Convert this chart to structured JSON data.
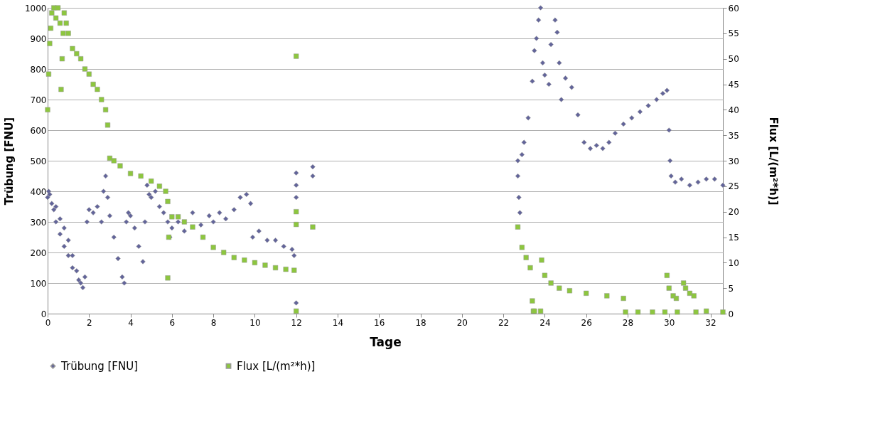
{
  "chart_data": {
    "type": "scatter",
    "xlabel": "Tage",
    "ylabel": "Trübung [FNU]",
    "y2label": "Flux [L/(m²*h)]",
    "xlim": [
      0,
      32.6
    ],
    "xticks": [
      0,
      2,
      4,
      6,
      8,
      10,
      12,
      14,
      16,
      18,
      20,
      22,
      24,
      26,
      28,
      30,
      32
    ],
    "ylim": [
      0,
      1000
    ],
    "yticks": [
      0,
      100,
      200,
      300,
      400,
      500,
      600,
      700,
      800,
      900,
      1000
    ],
    "y2lim": [
      0,
      60
    ],
    "y2ticks": [
      0,
      5,
      10,
      15,
      20,
      25,
      30,
      35,
      40,
      45,
      50,
      55,
      60
    ],
    "grid": "y",
    "legend": "bottom",
    "series": [
      {
        "name": "Trübung [FNU]",
        "color": "#62649a",
        "marker": "diamond",
        "x": [
          0,
          0.05,
          0.1,
          0.2,
          0.3,
          0.4,
          0.4,
          0.6,
          0.6,
          0.8,
          0.8,
          1.0,
          1.0,
          1.2,
          1.2,
          1.4,
          1.5,
          1.6,
          1.7,
          1.8,
          1.9,
          2.0,
          2.2,
          2.4,
          2.6,
          2.7,
          2.8,
          2.9,
          3.0,
          3.2,
          3.4,
          3.6,
          3.7,
          3.8,
          3.9,
          4.0,
          4.2,
          4.4,
          4.6,
          4.7,
          4.8,
          4.9,
          5.0,
          5.2,
          5.4,
          5.6,
          5.8,
          5.9,
          6.0,
          6.3,
          6.6,
          7.0,
          7.4,
          7.8,
          8.0,
          8.3,
          8.6,
          9.0,
          9.3,
          9.6,
          9.8,
          9.9,
          10.2,
          10.6,
          11.0,
          11.4,
          11.8,
          11.9,
          12.0,
          12.0,
          12.0,
          12.0,
          12.8,
          12.8,
          22.7,
          22.7,
          22.75,
          22.8,
          22.9,
          23.0,
          23.2,
          23.4,
          23.5,
          23.6,
          23.7,
          23.8,
          23.9,
          24.0,
          24.2,
          24.3,
          24.5,
          24.6,
          24.7,
          24.8,
          25.0,
          25.3,
          25.6,
          25.9,
          26.2,
          26.5,
          26.8,
          27.1,
          27.4,
          27.8,
          28.2,
          28.6,
          29.0,
          29.4,
          29.7,
          29.9,
          30.0,
          30.05,
          30.1,
          30.3,
          30.6,
          31.0,
          31.4,
          31.8,
          32.2,
          32.6
        ],
        "values": [
          380,
          400,
          390,
          360,
          340,
          350,
          300,
          310,
          260,
          280,
          220,
          240,
          190,
          190,
          150,
          140,
          110,
          100,
          85,
          120,
          300,
          340,
          330,
          350,
          300,
          400,
          450,
          380,
          320,
          250,
          180,
          120,
          100,
          300,
          330,
          320,
          280,
          220,
          170,
          300,
          420,
          390,
          380,
          400,
          350,
          330,
          300,
          250,
          280,
          300,
          270,
          330,
          290,
          320,
          300,
          330,
          310,
          340,
          380,
          390,
          360,
          250,
          270,
          240,
          240,
          220,
          210,
          190,
          460,
          420,
          380,
          35,
          480,
          450,
          500,
          450,
          380,
          330,
          520,
          560,
          640,
          760,
          860,
          900,
          960,
          1000,
          820,
          780,
          750,
          880,
          960,
          920,
          820,
          700,
          770,
          740,
          650,
          560,
          540,
          550,
          540,
          560,
          590,
          620,
          640,
          660,
          680,
          700,
          720,
          730,
          600,
          500,
          450,
          430,
          440,
          420,
          430,
          440,
          440,
          420
        ]
      },
      {
        "name": "Flux [L/(m²*h)]",
        "color": "#8dc63f",
        "marker": "square",
        "axis": "y2",
        "x": [
          0.0,
          0.05,
          0.1,
          0.15,
          0.2,
          0.3,
          0.4,
          0.5,
          0.6,
          0.65,
          0.7,
          0.75,
          0.8,
          0.9,
          1.0,
          1.2,
          1.4,
          1.6,
          1.8,
          2.0,
          2.2,
          2.4,
          2.6,
          2.8,
          2.9,
          3.0,
          3.2,
          3.5,
          4.0,
          4.5,
          5.0,
          5.4,
          5.7,
          5.8,
          5.8,
          5.85,
          6.0,
          6.3,
          6.6,
          7.0,
          7.5,
          8.0,
          8.5,
          9.0,
          9.5,
          10.0,
          10.5,
          11.0,
          11.5,
          11.9,
          12.0,
          12.0,
          12.0,
          12.0,
          12.8,
          22.7,
          22.9,
          23.1,
          23.3,
          23.4,
          23.45,
          23.5,
          23.8,
          23.85,
          24.0,
          24.3,
          24.7,
          25.2,
          26.0,
          27.0,
          27.8,
          27.9,
          28.5,
          29.2,
          29.8,
          29.9,
          30.0,
          30.2,
          30.35,
          30.4,
          30.7,
          30.8,
          31.0,
          31.2,
          31.3,
          31.8,
          32.6
        ],
        "values": [
          40,
          47,
          53,
          56,
          59,
          60,
          58,
          60,
          57,
          44,
          50,
          55,
          59,
          57,
          55,
          52,
          51,
          50,
          48,
          47,
          45,
          44,
          42,
          40,
          37,
          30.5,
          30,
          29,
          27.5,
          27,
          26,
          25,
          24,
          22,
          7,
          15,
          19,
          19,
          18,
          17,
          15,
          13,
          12,
          11,
          10.5,
          10,
          9.5,
          9,
          8.7,
          8.5,
          50.5,
          20,
          17.5,
          0.5,
          17,
          17,
          13,
          11,
          9,
          2.5,
          0.5,
          0.5,
          0.5,
          10.5,
          7.5,
          6,
          5,
          4.5,
          4,
          3.5,
          3,
          0.3,
          0.3,
          0.3,
          0.3,
          7.5,
          5,
          3.5,
          3,
          0.3,
          6,
          5,
          4,
          3.5,
          0.3,
          0.5,
          0.3
        ]
      }
    ]
  }
}
